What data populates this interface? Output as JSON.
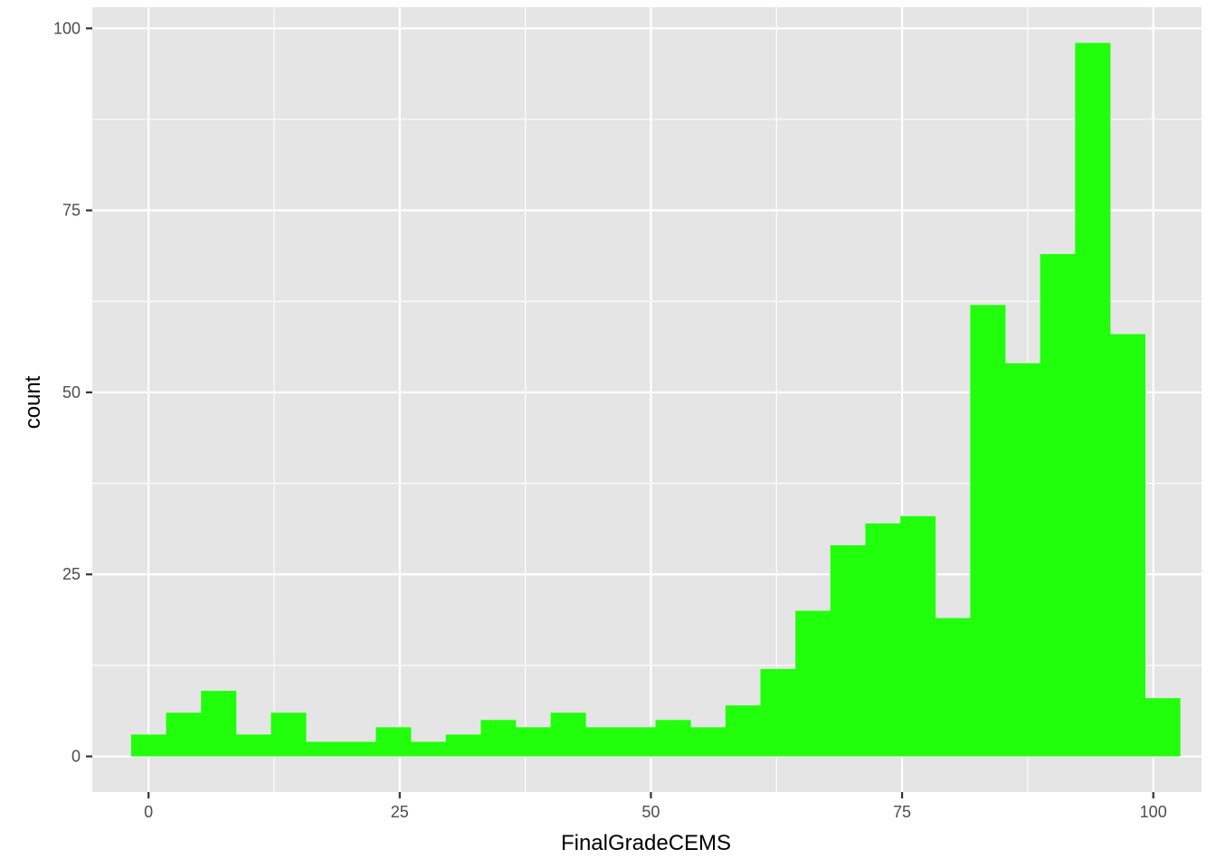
{
  "chart_data": {
    "type": "bar",
    "title": "",
    "xlabel": "FinalGradeCEMS",
    "ylabel": "count",
    "xlim": [
      -5.6,
      104.8
    ],
    "ylim": [
      -4.9,
      102.9
    ],
    "grid": true,
    "x_ticks": [
      {
        "value": 0,
        "label": "0"
      },
      {
        "value": 25,
        "label": "25"
      },
      {
        "value": 50,
        "label": "50"
      },
      {
        "value": 75,
        "label": "75"
      },
      {
        "value": 100,
        "label": "100"
      }
    ],
    "y_ticks": [
      {
        "value": 0,
        "label": "0"
      },
      {
        "value": 25,
        "label": "25"
      },
      {
        "value": 50,
        "label": "50"
      },
      {
        "value": 75,
        "label": "75"
      },
      {
        "value": 100,
        "label": "100"
      }
    ],
    "bin_width": 3.48,
    "bin_start": -1.74,
    "counts": [
      3,
      6,
      9,
      3,
      6,
      2,
      2,
      4,
      2,
      3,
      5,
      4,
      6,
      4,
      4,
      5,
      4,
      7,
      12,
      20,
      29,
      32,
      33,
      19,
      62,
      54,
      69,
      98,
      58,
      8
    ],
    "fill_color": "#22ff0c",
    "panel_color": "#e5e5e5",
    "grid_color": "#ffffff"
  }
}
